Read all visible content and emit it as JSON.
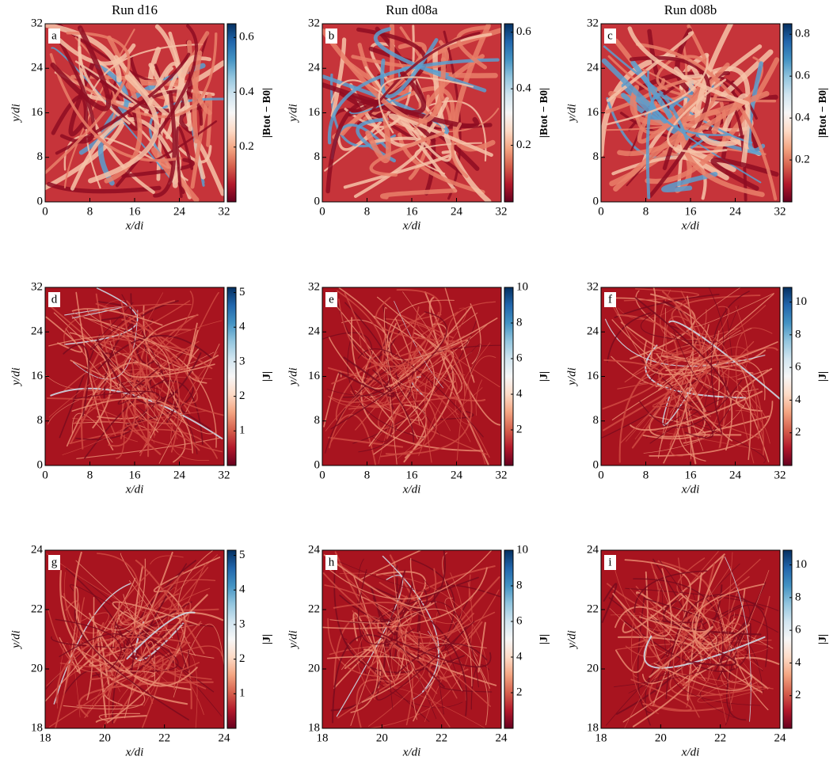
{
  "chart_data": [
    {
      "type": "heatmap",
      "title": "Run d16",
      "panel": "a",
      "xlabel": "x/di",
      "ylabel": "y/di",
      "xlim": [
        0,
        32
      ],
      "xticks": [
        0,
        8,
        16,
        24,
        32
      ],
      "ylim": [
        0,
        32
      ],
      "yticks": [
        0,
        8,
        16,
        24,
        32
      ],
      "colorbar": {
        "label": "|Btot − B0|",
        "lim": [
          0,
          0.65
        ],
        "ticks": [
          0.2,
          0.4,
          0.6
        ]
      }
    },
    {
      "type": "heatmap",
      "title": "Run d08a",
      "panel": "b",
      "xlabel": "x/di",
      "ylabel": "y/di",
      "xlim": [
        0,
        32
      ],
      "xticks": [
        0,
        8,
        16,
        24,
        32
      ],
      "ylim": [
        0,
        32
      ],
      "yticks": [
        0,
        8,
        16,
        24,
        32
      ],
      "colorbar": {
        "label": "|Btot − B0|",
        "lim": [
          0,
          0.63
        ],
        "ticks": [
          0.2,
          0.4,
          0.6
        ]
      }
    },
    {
      "type": "heatmap",
      "title": "Run d08b",
      "panel": "c",
      "xlabel": "x/di",
      "ylabel": "y/di",
      "xlim": [
        0,
        32
      ],
      "xticks": [
        0,
        8,
        16,
        24,
        32
      ],
      "ylim": [
        0,
        32
      ],
      "yticks": [
        0,
        8,
        16,
        24,
        32
      ],
      "colorbar": {
        "label": "|Btot − B0|",
        "lim": [
          0,
          0.85
        ],
        "ticks": [
          0.2,
          0.4,
          0.6,
          0.8
        ]
      }
    },
    {
      "type": "heatmap",
      "panel": "d",
      "xlabel": "x/di",
      "ylabel": "y/di",
      "xlim": [
        0,
        32
      ],
      "xticks": [
        0,
        8,
        16,
        24,
        32
      ],
      "ylim": [
        0,
        32
      ],
      "yticks": [
        0,
        8,
        16,
        24,
        32
      ],
      "colorbar": {
        "label": "|J|",
        "lim": [
          0,
          5.15
        ],
        "ticks": [
          1,
          2,
          3,
          4,
          5
        ]
      }
    },
    {
      "type": "heatmap",
      "panel": "e",
      "xlabel": "x/di",
      "ylabel": "y/di",
      "xlim": [
        0,
        32
      ],
      "xticks": [
        0,
        8,
        16,
        24,
        32
      ],
      "ylim": [
        0,
        32
      ],
      "yticks": [
        0,
        8,
        16,
        24,
        32
      ],
      "colorbar": {
        "label": "|J|",
        "lim": [
          0,
          10
        ],
        "ticks": [
          2,
          4,
          6,
          8,
          10
        ]
      }
    },
    {
      "type": "heatmap",
      "panel": "f",
      "xlabel": "x/di",
      "ylabel": "y/di",
      "xlim": [
        0,
        32
      ],
      "xticks": [
        0,
        8,
        16,
        24,
        32
      ],
      "ylim": [
        0,
        32
      ],
      "yticks": [
        0,
        8,
        16,
        24,
        32
      ],
      "colorbar": {
        "label": "|J|",
        "lim": [
          0,
          10.9
        ],
        "ticks": [
          2,
          4,
          6,
          8,
          10
        ]
      }
    },
    {
      "type": "heatmap",
      "panel": "g",
      "xlabel": "x/di",
      "ylabel": "y/di",
      "xlim": [
        18,
        24
      ],
      "xticks": [
        18,
        20,
        22,
        24
      ],
      "ylim": [
        18,
        24
      ],
      "yticks": [
        18,
        20,
        22,
        24
      ],
      "colorbar": {
        "label": "|J|",
        "lim": [
          0,
          5.15
        ],
        "ticks": [
          1,
          2,
          3,
          4,
          5
        ]
      }
    },
    {
      "type": "heatmap",
      "panel": "h",
      "xlabel": "x/di",
      "ylabel": "y/di",
      "xlim": [
        18,
        24
      ],
      "xticks": [
        18,
        20,
        22,
        24
      ],
      "ylim": [
        18,
        24
      ],
      "yticks": [
        18,
        20,
        22,
        24
      ],
      "colorbar": {
        "label": "|J|",
        "lim": [
          0,
          10
        ],
        "ticks": [
          2,
          4,
          6,
          8,
          10
        ]
      }
    },
    {
      "type": "heatmap",
      "panel": "i",
      "xlabel": "x/di",
      "ylabel": "y/di",
      "xlim": [
        18,
        24
      ],
      "xticks": [
        18,
        20,
        22,
        24
      ],
      "ylim": [
        18,
        24
      ],
      "yticks": [
        18,
        20,
        22,
        24
      ],
      "colorbar": {
        "label": "|J|",
        "lim": [
          0,
          10.9
        ],
        "ticks": [
          2,
          4,
          6,
          8,
          10
        ]
      }
    }
  ]
}
